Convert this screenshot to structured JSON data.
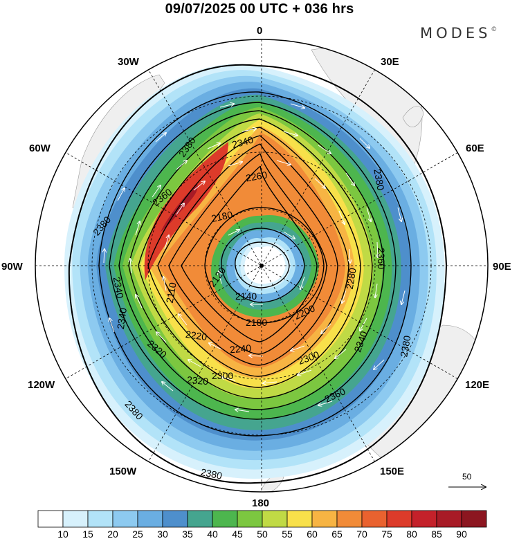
{
  "title": "09/07/2025  00 UTC  + 036 hrs",
  "brand": {
    "name": "MODES",
    "mark": "©"
  },
  "longitudes": {
    "lon_0": "0",
    "lon_30e": "30E",
    "lon_60e": "60E",
    "lon_90e": "90E",
    "lon_120e": "120E",
    "lon_150e": "150E",
    "lon_180": "180",
    "lon_150w": "150W",
    "lon_120w": "120W",
    "lon_90w": "90W",
    "lon_60w": "60W",
    "lon_30w": "30W"
  },
  "contour_labels": {
    "c2380a": "2380",
    "c2380b": "2380",
    "c2380c": "2380",
    "c2380d": "2380",
    "c2380e": "2380",
    "c2380f": "2380",
    "c2360a": "2360",
    "c2360b": "2360",
    "c2360c": "2360",
    "c2340a": "2340",
    "c2340b": "2340",
    "c2340c": "2340",
    "c2340d": "2340",
    "c2320a": "2320",
    "c2320b": "2320",
    "c2300a": "2300",
    "c2300b": "2300",
    "c2280": "2280",
    "c2260": "2260",
    "c2240": "2240",
    "c2220": "2220",
    "c2200": "2200",
    "c2180a": "2180",
    "c2180b": "2180",
    "c2140": "2140",
    "c2120": "2120",
    "c2110": "2110"
  },
  "reference_vector": {
    "value": "50"
  },
  "colorbar": {
    "labels": [
      "10",
      "15",
      "20",
      "25",
      "30",
      "35",
      "40",
      "45",
      "50",
      "55",
      "60",
      "65",
      "70",
      "75",
      "80",
      "85",
      "90"
    ],
    "colors": [
      "#ffffff",
      "#d7f1fc",
      "#b2e3f8",
      "#8dcaf0",
      "#6aaee2",
      "#4e8fcc",
      "#45a58f",
      "#4db64e",
      "#7cc740",
      "#c0da45",
      "#f8e04a",
      "#f7b443",
      "#f18b38",
      "#e9622f",
      "#dc3b2a",
      "#c4212a",
      "#a81b26",
      "#8c1620"
    ]
  }
}
